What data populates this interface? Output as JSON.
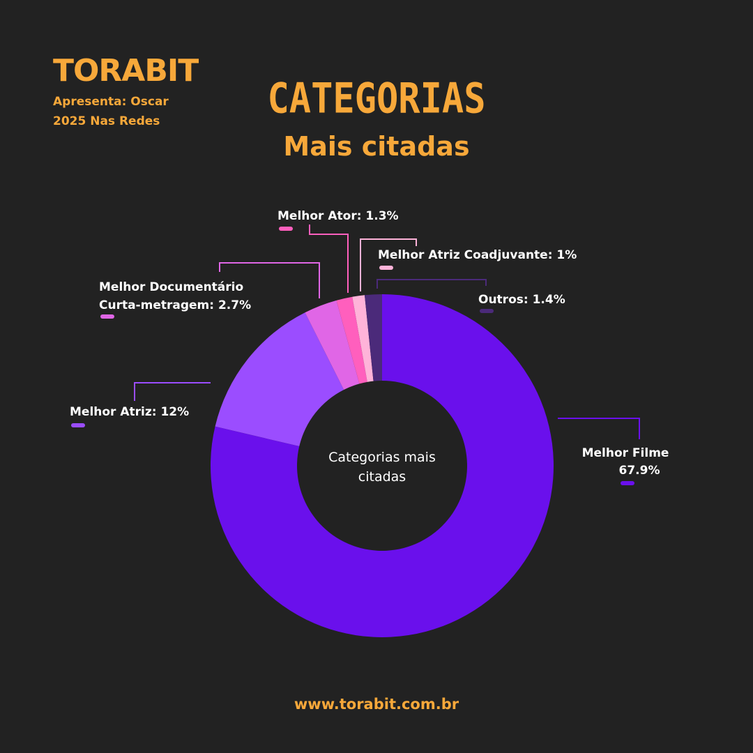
{
  "brand": {
    "logo_text": "TORABIT",
    "tagline": "Apresenta: Oscar 2025 Nas Redes"
  },
  "header": {
    "title": "CATEGORIAS",
    "subtitle": "Mais citadas"
  },
  "footer": {
    "url": "www.torabit.com.br"
  },
  "colors": {
    "background": "#222222",
    "accent": "#f7a83a"
  },
  "chart_data": {
    "type": "pie",
    "donut": true,
    "center_label": [
      "Categorias mais",
      "citadas"
    ],
    "series": [
      {
        "name": "Melhor Filme",
        "value": 67.9,
        "label": [
          "Melhor Filme",
          "67.9%"
        ],
        "color": "#6a10ec"
      },
      {
        "name": "Melhor Atriz",
        "value": 12,
        "label": [
          "Melhor Atriz: 12%"
        ],
        "color": "#9b4dff"
      },
      {
        "name": "Melhor Documentário Curta-metragem",
        "value": 2.7,
        "label": [
          "Melhor Documentário",
          "Curta-metragem: 2.7%"
        ],
        "color": "#e066e6"
      },
      {
        "name": "Melhor Ator",
        "value": 1.3,
        "label": [
          "Melhor Ator: 1.3%"
        ],
        "color": "#ff5fbd"
      },
      {
        "name": "Melhor Atriz Coadjuvante",
        "value": 1,
        "label": [
          "Melhor Atriz Coadjuvante: 1%"
        ],
        "color": "#ffb3d9"
      },
      {
        "name": "Outros",
        "value": 1.4,
        "label": [
          "Outros: 1.4%"
        ],
        "color": "#4b2a7a"
      }
    ]
  }
}
